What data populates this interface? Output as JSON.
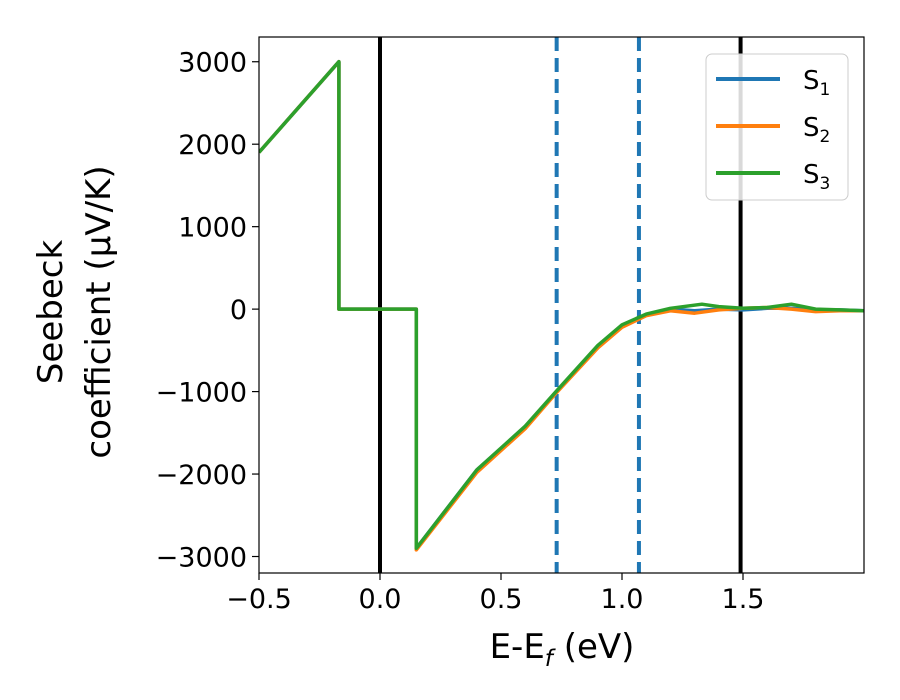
{
  "chart_data": {
    "type": "line",
    "title": "",
    "xlabel": {
      "main": "E-E",
      "sub": "f",
      "unit": " (eV)"
    },
    "ylabel": {
      "line1": "Seebeck",
      "line2": "coefficient  (μV/K)"
    },
    "xlim": [
      -0.5,
      2.0
    ],
    "ylim": [
      -3200,
      3300
    ],
    "xticks": [
      -0.5,
      0.0,
      0.5,
      1.0,
      1.5
    ],
    "xtick_labels": [
      "−0.5",
      "0.0",
      "0.5",
      "1.0",
      "1.5"
    ],
    "yticks": [
      -3000,
      -2000,
      -1000,
      0,
      1000,
      2000,
      3000
    ],
    "ytick_labels": [
      "−3000",
      "−2000",
      "−1000",
      "0",
      "1000",
      "2000",
      "3000"
    ],
    "grid": false,
    "legend_position": "top-right",
    "vlines": [
      {
        "x": 0.0,
        "style": "solid",
        "color": "#000000"
      },
      {
        "x": 1.49,
        "style": "solid",
        "color": "#000000"
      },
      {
        "x": 0.73,
        "style": "dashed",
        "color": "#1f77b4"
      },
      {
        "x": 1.07,
        "style": "dashed",
        "color": "#1f77b4"
      }
    ],
    "series": [
      {
        "name": "S",
        "sub": "1",
        "color": "#1f77b4",
        "points": [
          [
            -0.5,
            1900
          ],
          [
            -0.17,
            3000
          ],
          [
            -0.17,
            0
          ],
          [
            0.15,
            0
          ],
          [
            0.15,
            -2900
          ],
          [
            0.4,
            -1950
          ],
          [
            0.6,
            -1430
          ],
          [
            0.73,
            -1000
          ],
          [
            0.9,
            -450
          ],
          [
            1.0,
            -200
          ],
          [
            1.1,
            -70
          ],
          [
            1.2,
            0
          ],
          [
            1.3,
            -20
          ],
          [
            1.4,
            0
          ],
          [
            1.5,
            -10
          ],
          [
            1.6,
            10
          ],
          [
            1.7,
            10
          ],
          [
            1.8,
            -10
          ],
          [
            1.9,
            -10
          ],
          [
            2.0,
            -20
          ]
        ]
      },
      {
        "name": "S",
        "sub": "2",
        "color": "#ff7f0e",
        "points": [
          [
            -0.5,
            1900
          ],
          [
            -0.17,
            3000
          ],
          [
            -0.17,
            0
          ],
          [
            0.15,
            0
          ],
          [
            0.15,
            -2920
          ],
          [
            0.4,
            -1980
          ],
          [
            0.6,
            -1450
          ],
          [
            0.73,
            -1010
          ],
          [
            0.9,
            -470
          ],
          [
            1.0,
            -220
          ],
          [
            1.1,
            -80
          ],
          [
            1.2,
            -20
          ],
          [
            1.3,
            -50
          ],
          [
            1.4,
            -10
          ],
          [
            1.5,
            10
          ],
          [
            1.6,
            20
          ],
          [
            1.7,
            0
          ],
          [
            1.8,
            -30
          ],
          [
            1.9,
            -20
          ],
          [
            2.0,
            -20
          ]
        ]
      },
      {
        "name": "S",
        "sub": "3",
        "color": "#2ca02c",
        "points": [
          [
            -0.5,
            1900
          ],
          [
            -0.17,
            3000
          ],
          [
            -0.17,
            0
          ],
          [
            0.15,
            0
          ],
          [
            0.15,
            -2900
          ],
          [
            0.4,
            -1950
          ],
          [
            0.6,
            -1420
          ],
          [
            0.73,
            -990
          ],
          [
            0.9,
            -440
          ],
          [
            1.0,
            -190
          ],
          [
            1.1,
            -60
          ],
          [
            1.2,
            10
          ],
          [
            1.33,
            60
          ],
          [
            1.4,
            30
          ],
          [
            1.5,
            10
          ],
          [
            1.6,
            20
          ],
          [
            1.7,
            60
          ],
          [
            1.8,
            0
          ],
          [
            1.9,
            -10
          ],
          [
            2.0,
            -20
          ]
        ]
      }
    ]
  }
}
